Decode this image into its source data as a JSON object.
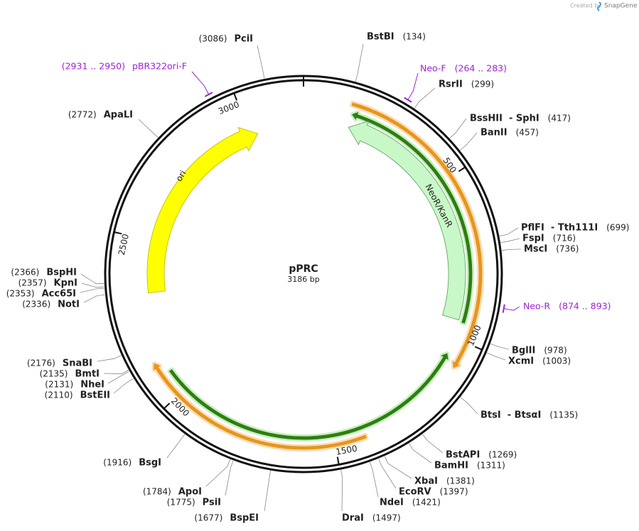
{
  "credit": {
    "prefix": "Created by",
    "brand": "SnapGene"
  },
  "plasmid": {
    "name": "pPRC",
    "length": "3186 bp"
  },
  "ruler": [
    500,
    1000,
    1500,
    2000,
    2500,
    3000
  ],
  "features": [
    {
      "name": "ori"
    },
    {
      "name": "NeoR/KanR"
    }
  ],
  "primers": [
    {
      "name": "Neo-F",
      "range": "(264 .. 283)"
    },
    {
      "name": "Neo-R",
      "range": "(874 .. 893)"
    },
    {
      "name": "pBR322ori-F",
      "range": "(2931 .. 2950)"
    }
  ],
  "sites": [
    {
      "name": "PciI",
      "position": "(3086)"
    },
    {
      "name": "BstBI",
      "position": "(134)"
    },
    {
      "name": "RsrII",
      "position": "(299)"
    },
    {
      "name": "BssHII  - SphI",
      "position": "(417)"
    },
    {
      "name": "BanII",
      "position": "(457)"
    },
    {
      "name": "PflFI  - Tth111I",
      "position": "(699)"
    },
    {
      "name": "FspI",
      "position": "(716)"
    },
    {
      "name": "MscI",
      "position": "(736)"
    },
    {
      "name": "BglII",
      "position": "(978)"
    },
    {
      "name": "XcmI",
      "position": "(1003)"
    },
    {
      "name": "BtsI  - BtsαI",
      "position": "(1135)"
    },
    {
      "name": "BstAPI",
      "position": "(1269)"
    },
    {
      "name": "BamHI",
      "position": "(1311)"
    },
    {
      "name": "XbaI",
      "position": "(1381)"
    },
    {
      "name": "EcoRV",
      "position": "(1397)"
    },
    {
      "name": "NdeI",
      "position": "(1421)"
    },
    {
      "name": "DraI",
      "position": "(1497)"
    },
    {
      "name": "BspEI",
      "position": "(1677)"
    },
    {
      "name": "PsiI",
      "position": "(1775)"
    },
    {
      "name": "ApoI",
      "position": "(1784)"
    },
    {
      "name": "BsgI",
      "position": "(1916)"
    },
    {
      "name": "BstEII",
      "position": "(2110)"
    },
    {
      "name": "NheI",
      "position": "(2131)"
    },
    {
      "name": "BmtI",
      "position": "(2135)"
    },
    {
      "name": "SnaBI",
      "position": "(2176)"
    },
    {
      "name": "NotI",
      "position": "(2336)"
    },
    {
      "name": "Acc65I",
      "position": "(2353)"
    },
    {
      "name": "KpnI",
      "position": "(2357)"
    },
    {
      "name": "BspHI",
      "position": "(2366)"
    },
    {
      "name": "ApaLI",
      "position": "(2772)"
    }
  ]
}
